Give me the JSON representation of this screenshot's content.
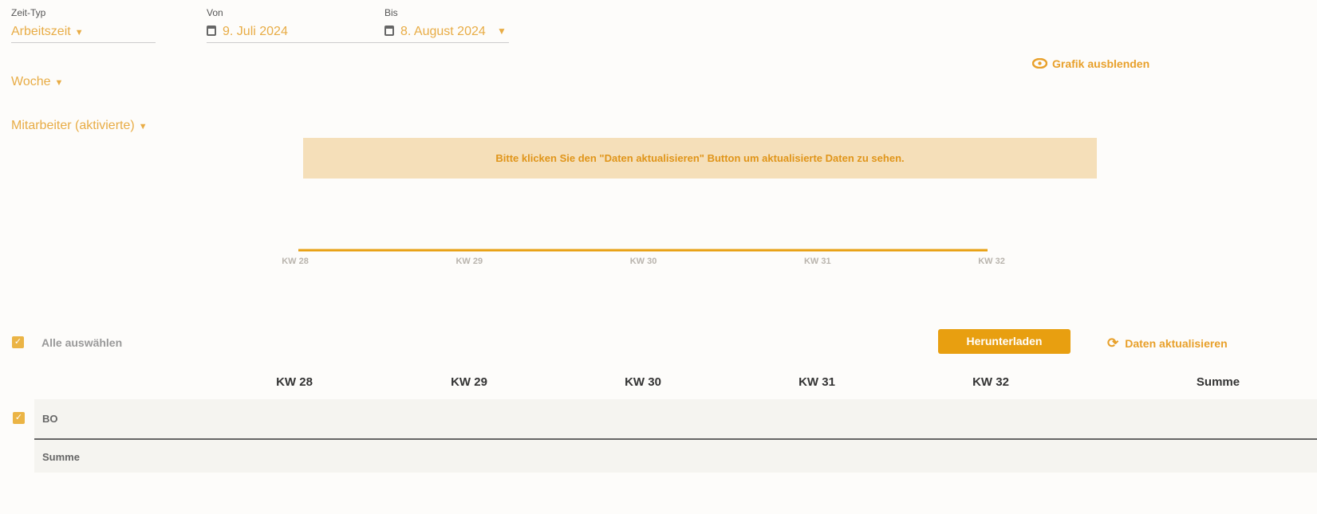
{
  "filters": {
    "zeit_typ": {
      "label": "Zeit-Typ",
      "value": "Arbeitszeit"
    },
    "von": {
      "label": "Von",
      "value": "9. Juli 2024"
    },
    "bis": {
      "label": "Bis",
      "value": "8. August 2024"
    },
    "gruppierung": {
      "value": "Woche"
    },
    "mitarbeiter": {
      "value": "Mitarbeiter (aktivierte)"
    }
  },
  "grafik_toggle": {
    "label": "Grafik ausblenden",
    "icon": "eye-icon"
  },
  "notice": "Bitte klicken Sie den \"Daten aktualisieren\" Button um aktualisierte Daten zu sehen.",
  "chart_data": {
    "type": "line",
    "categories": [
      "KW 28",
      "KW 29",
      "KW 30",
      "KW 31",
      "KW 32"
    ],
    "values": [
      0,
      0,
      0,
      0,
      0
    ],
    "color": "#e89f10",
    "grid": false
  },
  "toolbar": {
    "select_all": "Alle auswählen",
    "download": "Herunterladen",
    "refresh": "Daten aktualisieren"
  },
  "table": {
    "columns": [
      "KW 28",
      "KW 29",
      "KW 30",
      "KW 31",
      "KW 32",
      "Summe"
    ],
    "rows": [
      {
        "label": "BO",
        "checked": true
      }
    ],
    "total_label": "Summe"
  },
  "colors": {
    "accent": "#e89f10",
    "notice_bg": "#f5dfb9"
  }
}
